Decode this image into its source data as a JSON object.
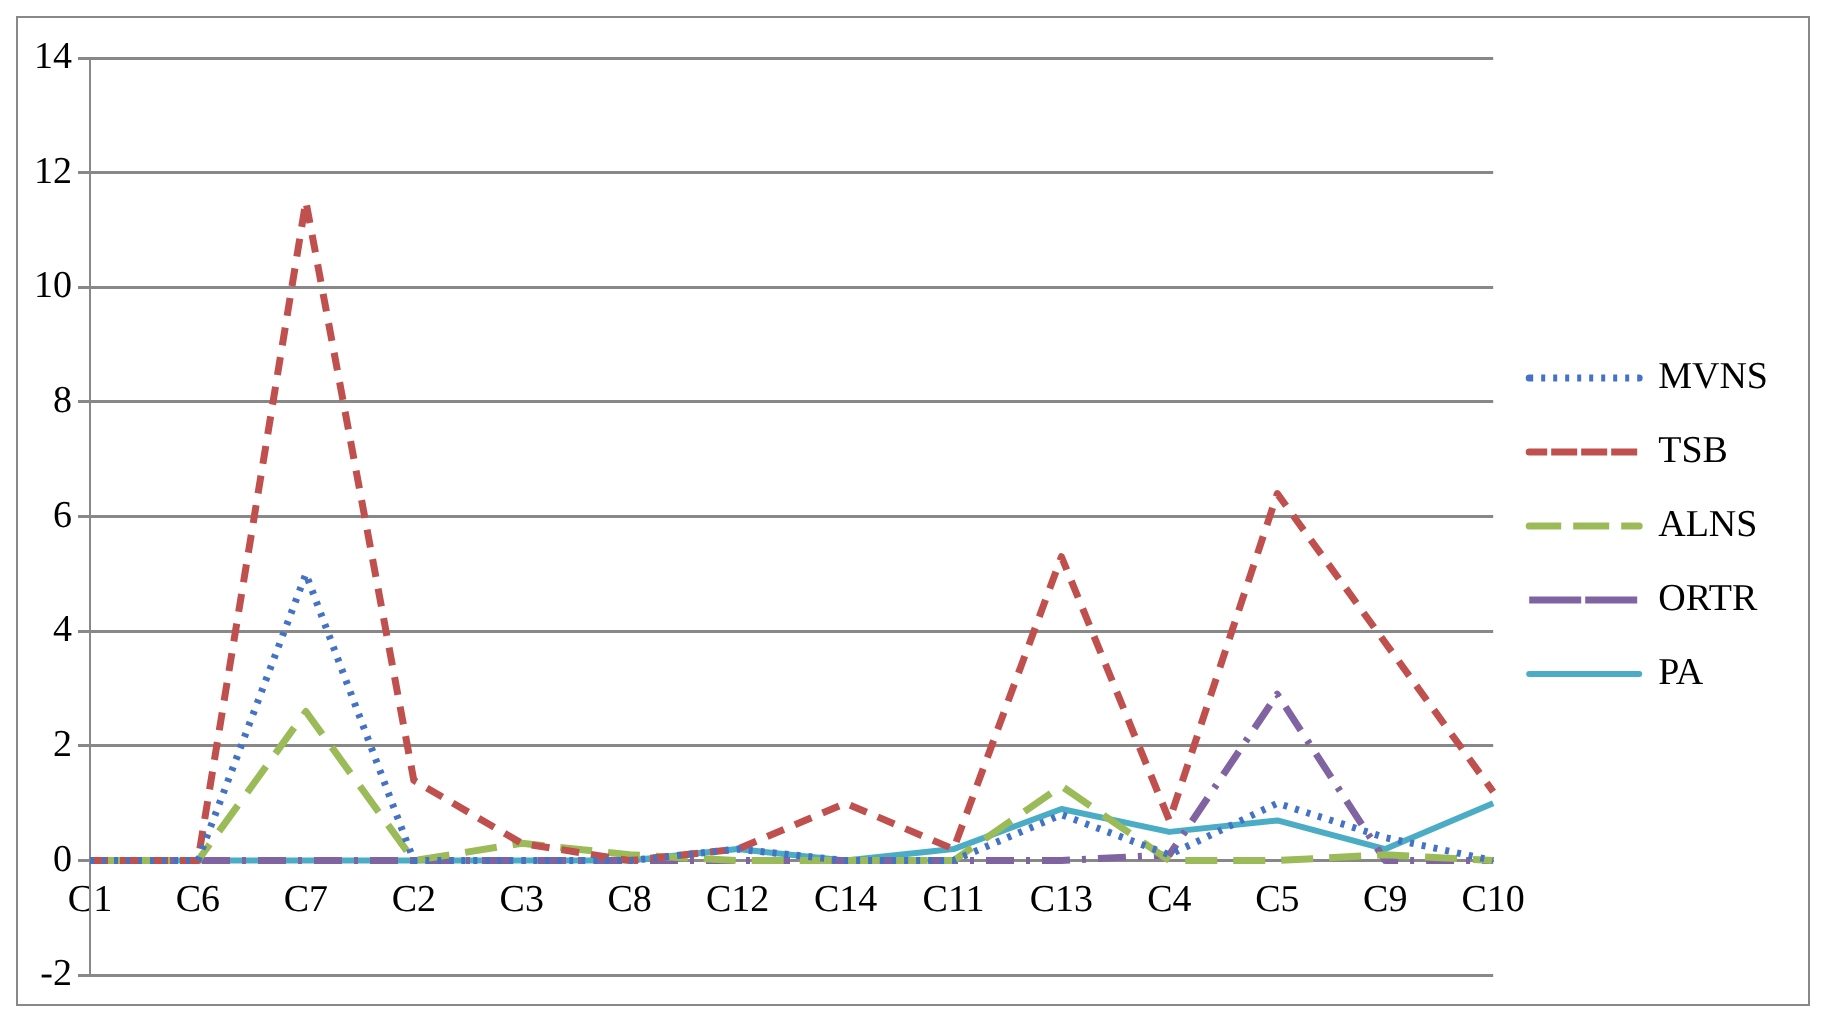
{
  "chart_data": {
    "type": "line",
    "categories": [
      "C1",
      "C6",
      "C7",
      "C2",
      "C3",
      "C8",
      "C12",
      "C14",
      "C11",
      "C13",
      "C4",
      "C5",
      "C9",
      "C10"
    ],
    "series": [
      {
        "name": "MVNS",
        "color": "#4472c4",
        "line_style": "dotted",
        "values": [
          0,
          0,
          5.0,
          0,
          0,
          0,
          0.2,
          0,
          0,
          0.8,
          0.1,
          1.0,
          0.4,
          0
        ]
      },
      {
        "name": "TSB",
        "color": "#c0504d",
        "line_style": "dashed",
        "values": [
          0,
          0,
          11.5,
          1.4,
          0.3,
          0,
          0.2,
          1.0,
          0.2,
          5.3,
          0.7,
          6.4,
          3.8,
          1.2
        ]
      },
      {
        "name": "ALNS",
        "color": "#9bbb59",
        "line_style": "dashed",
        "values": [
          0,
          0,
          2.6,
          0,
          0.3,
          0.1,
          0,
          0,
          0,
          1.3,
          0,
          0,
          0.1,
          0
        ]
      },
      {
        "name": "ORTR",
        "color": "#8064a2",
        "line_style": "dashed",
        "values": [
          0,
          0,
          0,
          0,
          0,
          0,
          0,
          0,
          0,
          0,
          0.1,
          2.9,
          0,
          0
        ]
      },
      {
        "name": "PA",
        "color": "#4bacc6",
        "line_style": "solid",
        "values": [
          0,
          0,
          0,
          0,
          0,
          0,
          0.2,
          0,
          0.2,
          0.9,
          0.5,
          0.7,
          0.2,
          1.0
        ]
      }
    ],
    "ylim": [
      -2,
      14
    ],
    "yticks": [
      -2,
      0,
      2,
      4,
      6,
      8,
      10,
      12,
      14
    ],
    "grid": "y",
    "legend": "right",
    "marker": "none"
  }
}
